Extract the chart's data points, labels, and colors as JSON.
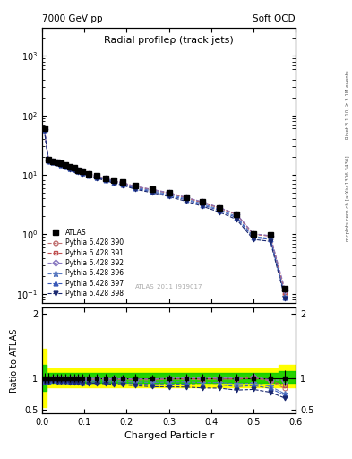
{
  "title": "Radial profileρ (track jets)",
  "top_left_label": "7000 GeV pp",
  "top_right_label": "Soft QCD",
  "right_label_top": "Rivet 3.1.10, ≥ 3.1M events",
  "right_label_bottom": "mcplots.cern.ch [arXiv:1306.3436]",
  "watermark": "ATLAS_2011_I919017",
  "xlabel": "Charged Particle r",
  "ylabel_bottom": "Ratio to ATLAS",
  "x_data": [
    0.005,
    0.015,
    0.025,
    0.035,
    0.045,
    0.055,
    0.065,
    0.075,
    0.085,
    0.095,
    0.11,
    0.13,
    0.15,
    0.17,
    0.19,
    0.22,
    0.26,
    0.3,
    0.34,
    0.38,
    0.42,
    0.46,
    0.5,
    0.54,
    0.575
  ],
  "atlas_y": [
    60.0,
    18.0,
    17.0,
    16.5,
    15.5,
    14.5,
    13.5,
    13.0,
    12.0,
    11.5,
    10.5,
    9.5,
    8.8,
    8.0,
    7.5,
    6.5,
    5.8,
    5.0,
    4.2,
    3.5,
    2.8,
    2.2,
    1.0,
    0.98,
    0.12
  ],
  "atlas_err": [
    5.0,
    1.5,
    1.2,
    1.1,
    1.0,
    0.9,
    0.85,
    0.8,
    0.75,
    0.7,
    0.65,
    0.55,
    0.5,
    0.45,
    0.4,
    0.38,
    0.32,
    0.28,
    0.24,
    0.2,
    0.18,
    0.15,
    0.08,
    0.07,
    0.015
  ],
  "pythia_390": [
    58.0,
    17.5,
    16.8,
    16.2,
    15.2,
    14.2,
    13.2,
    12.7,
    11.8,
    11.2,
    10.2,
    9.3,
    8.6,
    7.8,
    7.3,
    6.3,
    5.6,
    4.9,
    4.1,
    3.4,
    2.75,
    2.15,
    1.0,
    0.93,
    0.1
  ],
  "pythia_391": [
    58.5,
    17.6,
    16.9,
    16.3,
    15.3,
    14.3,
    13.3,
    12.8,
    11.9,
    11.3,
    10.3,
    9.4,
    8.65,
    7.85,
    7.35,
    6.35,
    5.65,
    4.95,
    4.15,
    3.45,
    2.77,
    2.17,
    1.01,
    0.94,
    0.105
  ],
  "pythia_392": [
    59.0,
    17.7,
    17.0,
    16.4,
    15.4,
    14.4,
    13.4,
    12.9,
    12.0,
    11.4,
    10.4,
    9.45,
    8.7,
    7.9,
    7.4,
    6.4,
    5.7,
    5.0,
    4.2,
    3.5,
    2.8,
    2.2,
    1.02,
    0.95,
    0.115
  ],
  "pythia_396": [
    57.0,
    17.2,
    16.5,
    15.9,
    14.9,
    13.9,
    12.9,
    12.4,
    11.5,
    10.9,
    10.0,
    9.1,
    8.4,
    7.6,
    7.1,
    6.1,
    5.4,
    4.7,
    3.95,
    3.25,
    2.6,
    2.0,
    0.92,
    0.85,
    0.09
  ],
  "pythia_397": [
    56.5,
    17.0,
    16.3,
    15.7,
    14.7,
    13.7,
    12.7,
    12.2,
    11.3,
    10.7,
    9.8,
    8.9,
    8.2,
    7.4,
    6.9,
    5.9,
    5.2,
    4.5,
    3.8,
    3.1,
    2.5,
    1.9,
    0.88,
    0.82,
    0.087
  ],
  "pythia_398": [
    56.0,
    16.8,
    16.1,
    15.5,
    14.5,
    13.5,
    12.5,
    12.0,
    11.1,
    10.5,
    9.6,
    8.7,
    8.0,
    7.2,
    6.7,
    5.7,
    5.0,
    4.3,
    3.6,
    2.95,
    2.35,
    1.78,
    0.82,
    0.76,
    0.082
  ],
  "colors": {
    "390": "#c07070",
    "391": "#c05050",
    "392": "#8878c0",
    "396": "#5878c0",
    "397": "#3858b8",
    "398": "#1a2870"
  }
}
